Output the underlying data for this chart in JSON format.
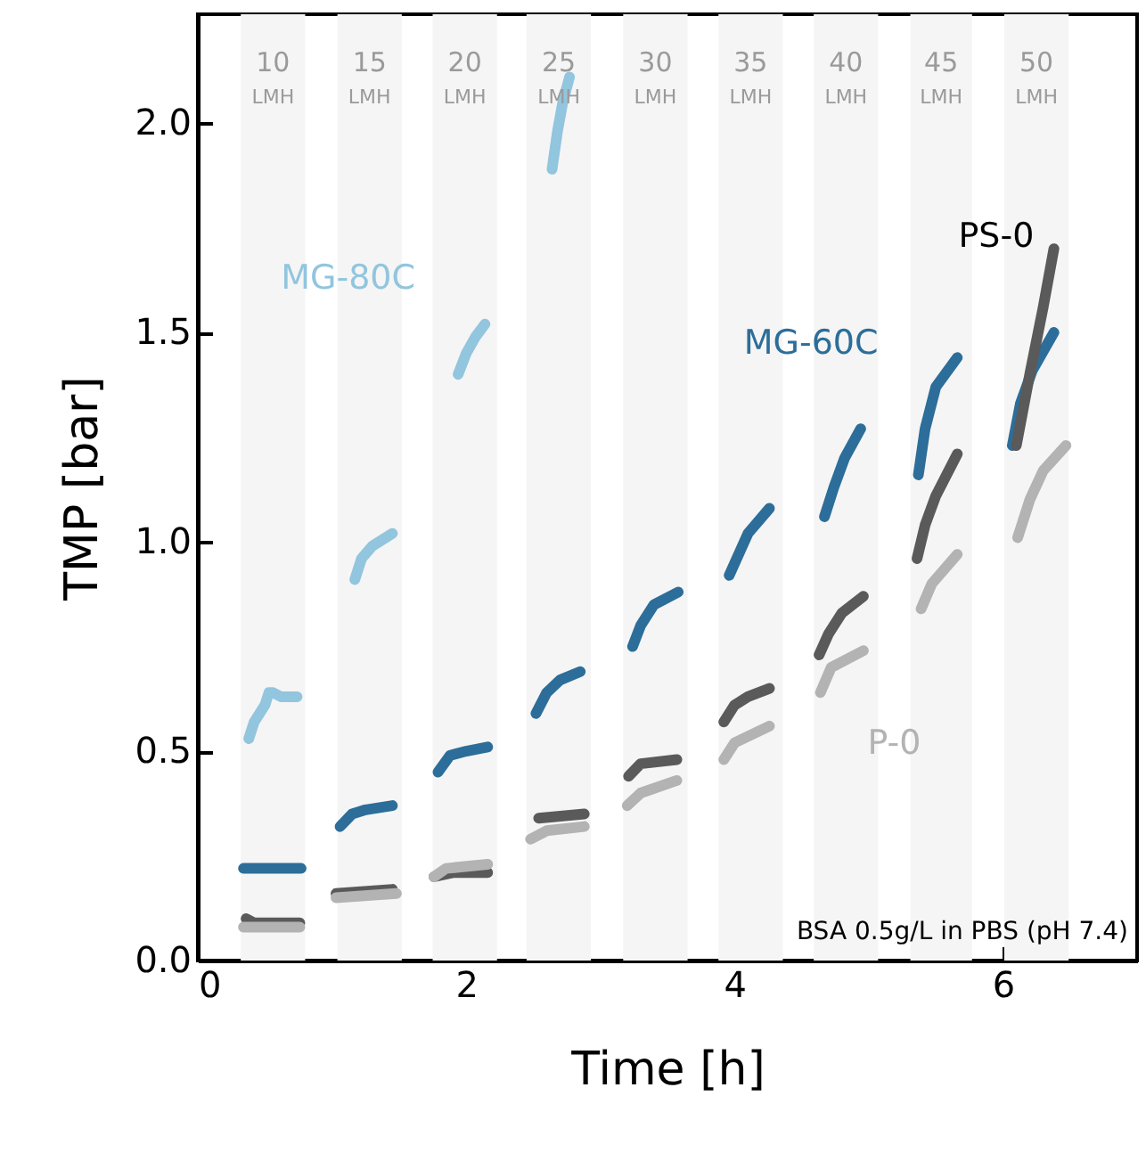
{
  "chart_data": {
    "type": "line",
    "xlabel": "Time [h]",
    "ylabel": "TMP [bar]",
    "xlim": [
      0,
      7
    ],
    "ylim": [
      0,
      2.26
    ],
    "xticks": [
      0,
      2,
      4,
      6
    ],
    "yticks": [
      {
        "value": 0,
        "label": "0.0"
      },
      {
        "value": 0.5,
        "label": "0.5"
      },
      {
        "value": 1,
        "label": "1.0"
      },
      {
        "value": 1.5,
        "label": "1.5"
      },
      {
        "value": 2,
        "label": "2.0"
      }
    ],
    "bands": [
      {
        "axis": "x",
        "from": 0.32,
        "to": 0.8,
        "label": "10\nLMH",
        "color": "#f5f5f5"
      },
      {
        "axis": "x",
        "from": 1.04,
        "to": 1.52,
        "label": "15\nLMH",
        "color": "#f5f5f5"
      },
      {
        "axis": "x",
        "from": 1.75,
        "to": 2.23,
        "label": "20\nLMH",
        "color": "#f5f5f5"
      },
      {
        "axis": "x",
        "from": 2.45,
        "to": 2.93,
        "label": "25\nLMH",
        "color": "#f5f5f5"
      },
      {
        "axis": "x",
        "from": 3.17,
        "to": 3.65,
        "label": "30\nLMH",
        "color": "#f5f5f5"
      },
      {
        "axis": "x",
        "from": 3.88,
        "to": 4.36,
        "label": "35\nLMH",
        "color": "#f5f5f5"
      },
      {
        "axis": "x",
        "from": 4.59,
        "to": 5.07,
        "label": "40\nLMH",
        "color": "#f5f5f5"
      },
      {
        "axis": "x",
        "from": 5.31,
        "to": 5.77,
        "label": "45\nLMH",
        "color": "#f5f5f5"
      },
      {
        "axis": "x",
        "from": 6.01,
        "to": 6.49,
        "label": "50\nLMH",
        "color": "#f5f5f5"
      }
    ],
    "series": [
      {
        "name": "MG-80C",
        "color": "#92c5de",
        "x": [
          0.38,
          0.42,
          0.48,
          0.5,
          0.53,
          0.56,
          0.62,
          0.74,
          0.9,
          1.17,
          1.22,
          1.3,
          1.45,
          1.6,
          1.94,
          2.0,
          2.07,
          2.14,
          2.3,
          2.64,
          2.68,
          2.72,
          2.77
        ],
        "values": [
          0.53,
          0.57,
          0.6,
          0.61,
          0.64,
          0.64,
          0.63,
          0.63,
          null,
          0.91,
          0.96,
          0.99,
          1.02,
          null,
          1.4,
          1.45,
          1.49,
          1.52,
          null,
          1.89,
          1.98,
          2.05,
          2.11
        ]
      },
      {
        "name": "MG-60C",
        "color": "#2c6e99",
        "x": [
          0.34,
          0.55,
          0.77,
          0.9,
          1.06,
          1.15,
          1.25,
          1.45,
          1.6,
          1.79,
          1.88,
          2.0,
          2.16,
          2.3,
          2.52,
          2.6,
          2.7,
          2.85,
          3.0,
          3.24,
          3.3,
          3.4,
          3.58,
          3.75,
          3.96,
          4.03,
          4.1,
          4.26,
          4.45,
          4.67,
          4.74,
          4.82,
          4.94,
          5.15,
          5.37,
          5.42,
          5.5,
          5.66,
          5.85,
          6.07,
          6.13,
          6.22,
          6.38
        ],
        "values": [
          0.22,
          0.22,
          0.22,
          null,
          0.32,
          0.35,
          0.36,
          0.37,
          null,
          0.45,
          0.49,
          0.5,
          0.51,
          null,
          0.59,
          0.64,
          0.67,
          0.69,
          null,
          0.75,
          0.8,
          0.85,
          0.88,
          null,
          0.92,
          0.97,
          1.02,
          1.08,
          null,
          1.06,
          1.13,
          1.2,
          1.27,
          null,
          1.16,
          1.27,
          1.37,
          1.44,
          null,
          1.23,
          1.33,
          1.41,
          1.5
        ]
      },
      {
        "name": "PS-0",
        "color": "#5a5a5a",
        "x": [
          0.36,
          0.42,
          0.76,
          0.9,
          1.03,
          1.45,
          1.6,
          1.76,
          1.9,
          2.16,
          2.3,
          2.54,
          2.88,
          3.0,
          3.21,
          3.3,
          3.57,
          3.75,
          3.92,
          4.0,
          4.1,
          4.26,
          4.45,
          4.63,
          4.7,
          4.8,
          4.96,
          5.15,
          5.36,
          5.42,
          5.5,
          5.66,
          5.85,
          6.1,
          6.2,
          6.3,
          6.38
        ],
        "values": [
          0.1,
          0.09,
          0.09,
          null,
          0.16,
          0.17,
          null,
          0.2,
          0.21,
          0.21,
          null,
          0.34,
          0.35,
          null,
          0.44,
          0.47,
          0.48,
          null,
          0.57,
          0.61,
          0.63,
          0.65,
          null,
          0.73,
          0.78,
          0.83,
          0.87,
          null,
          0.96,
          1.04,
          1.11,
          1.21,
          null,
          1.23,
          1.4,
          1.56,
          1.7
        ]
      },
      {
        "name": "P-0",
        "color": "#b3b3b3",
        "x": [
          0.34,
          0.76,
          0.9,
          1.03,
          1.48,
          1.6,
          1.76,
          1.85,
          2.16,
          2.3,
          2.48,
          2.6,
          2.88,
          3.0,
          3.2,
          3.3,
          3.57,
          3.75,
          3.92,
          4.0,
          4.26,
          4.45,
          4.64,
          4.72,
          4.96,
          5.15,
          5.39,
          5.47,
          5.66,
          5.85,
          6.11,
          6.2,
          6.3,
          6.47
        ],
        "values": [
          0.08,
          0.08,
          null,
          0.15,
          0.16,
          null,
          0.2,
          0.22,
          0.23,
          null,
          0.29,
          0.31,
          0.32,
          null,
          0.37,
          0.4,
          0.43,
          null,
          0.48,
          0.52,
          0.56,
          null,
          0.64,
          0.7,
          0.74,
          null,
          0.84,
          0.9,
          0.97,
          null,
          1.01,
          1.1,
          1.17,
          1.23
        ]
      }
    ],
    "annotations": [
      "BSA 0.5g/L in PBS (pH 7.4)"
    ]
  }
}
